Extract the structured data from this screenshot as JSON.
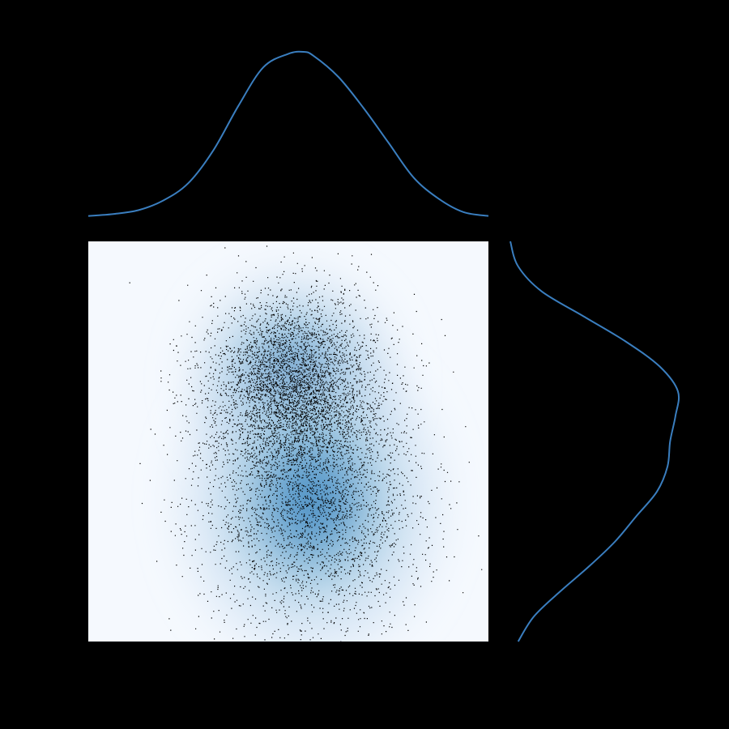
{
  "chart_data": {
    "type": "scatter",
    "subtype": "joint-plot-kde",
    "title": "",
    "xlabel": "",
    "ylabel": "",
    "grid": false,
    "legend": null,
    "colors": {
      "background": "#000000",
      "panel": "#f5f9fe",
      "kde_light": "#c6dbef",
      "kde_mid": "#4292c6",
      "kde_dark": "#08306b",
      "points": "#000000",
      "marginal_line": "#3a7ebf"
    },
    "xlim": [
      -4,
      4
    ],
    "ylim": [
      -4,
      4
    ],
    "joint": {
      "n_points": 7000,
      "components": [
        {
          "weight": 0.55,
          "mean_x": 0.1,
          "mean_y": 1.2,
          "sd_x": 0.85,
          "sd_y": 0.9
        },
        {
          "weight": 0.45,
          "mean_x": 0.45,
          "mean_y": -1.2,
          "sd_x": 1.1,
          "sd_y": 1.3
        }
      ]
    },
    "marginal_x": {
      "x": [
        -4,
        -3.5,
        -3,
        -2.5,
        -2,
        -1.5,
        -1,
        -0.5,
        0,
        0.3,
        0.5,
        1,
        1.5,
        2,
        2.5,
        3,
        3.5,
        4
      ],
      "density": [
        0.005,
        0.01,
        0.02,
        0.045,
        0.09,
        0.175,
        0.29,
        0.39,
        0.425,
        0.43,
        0.42,
        0.365,
        0.285,
        0.195,
        0.105,
        0.05,
        0.015,
        0.005
      ]
    },
    "marginal_y": {
      "y": [
        4,
        3.5,
        3,
        2.5,
        2,
        1.5,
        1,
        0.5,
        0,
        -0.5,
        -1,
        -1.5,
        -2,
        -2.5,
        -3,
        -3.5,
        -4
      ],
      "density": [
        0.0,
        0.015,
        0.06,
        0.14,
        0.22,
        0.285,
        0.32,
        0.315,
        0.305,
        0.3,
        0.28,
        0.24,
        0.2,
        0.15,
        0.095,
        0.045,
        0.015
      ]
    }
  }
}
